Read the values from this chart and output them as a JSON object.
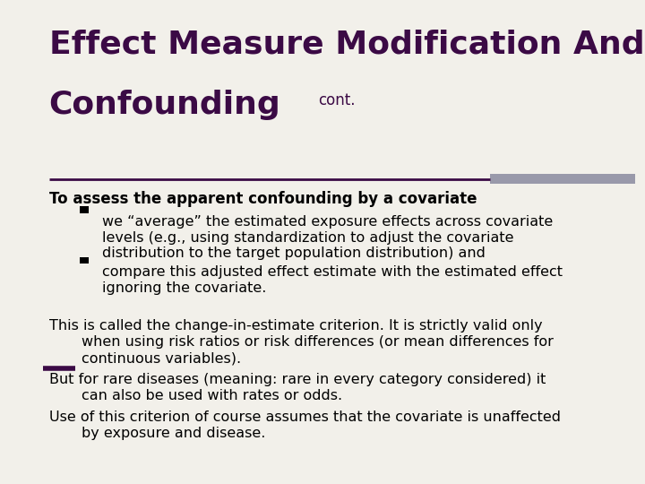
{
  "title_line1": "Effect Measure Modification And",
  "title_line2": "Confounding",
  "title_cont": "cont.",
  "title_color": "#3B0A45",
  "bg_color": "#F2F0EA",
  "divider_color": "#3B0A45",
  "divider_gray_color": "#9999AA",
  "body_color": "#000000",
  "bold_line": "To assess the apparent confounding by a covariate",
  "bullet1_line1": "we “average” the estimated exposure effects across covariate",
  "bullet1_line2": "levels (e.g., using standardization to adjust the covariate",
  "bullet1_line3": "distribution to the target population distribution) and",
  "bullet2_line1": "compare this adjusted effect estimate with the estimated effect",
  "bullet2_line2": "ignoring the covariate.",
  "para1_line1": "This is called the change-in-estimate criterion. It is strictly valid only",
  "para1_line2": "when using risk ratios or risk differences (or mean differences for",
  "para1_line3": "continuous variables).",
  "para2_line1": "But for rare diseases (meaning: rare in every category considered) it",
  "para2_line2": "can also be used with rates or odds.",
  "para3_line1": "Use of this criterion of course assumes that the covariate is unaffected",
  "para3_line2": "by exposure and disease.",
  "font_family": "DejaVu Sans",
  "title_fontsize": 26,
  "cont_fontsize": 12,
  "bold_fontsize": 12,
  "body_fontsize": 11.5
}
